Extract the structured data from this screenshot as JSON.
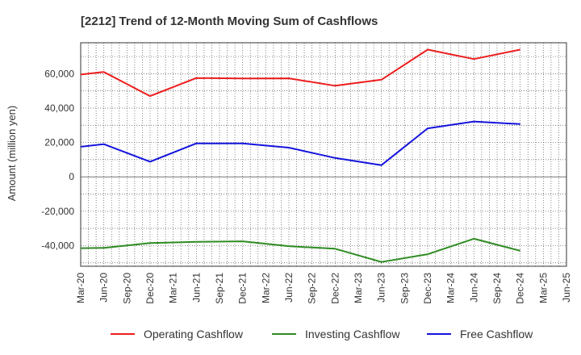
{
  "chart_data": {
    "type": "line",
    "title": "[2212]  Trend of 12-Month Moving Sum of Cashflows",
    "xlabel": "",
    "ylabel": "Amount (million yen)",
    "ylim": [
      -52000,
      78000
    ],
    "yticks": [
      60000,
      40000,
      20000,
      0,
      -20000,
      -40000
    ],
    "ytick_labels": [
      "60,000",
      "40,000",
      "20,000",
      "0",
      "-20,000",
      "-40,000"
    ],
    "categories": [
      "Mar-20",
      "Jun-20",
      "Sep-20",
      "Dec-20",
      "Mar-21",
      "Jun-21",
      "Sep-21",
      "Dec-21",
      "Mar-22",
      "Jun-22",
      "Sep-22",
      "Dec-22",
      "Mar-23",
      "Jun-23",
      "Sep-23",
      "Dec-23",
      "Mar-24",
      "Jun-24",
      "Sep-24",
      "Dec-24",
      "Mar-25",
      "Jun-25"
    ],
    "grid": true,
    "legend_position": "bottom",
    "series": [
      {
        "name": "Operating Cashflow",
        "color": "#ee1c1c",
        "values": [
          59500,
          61000,
          null,
          47000,
          null,
          57500,
          null,
          57200,
          null,
          57300,
          null,
          53000,
          null,
          56500,
          null,
          74000,
          null,
          68500,
          null,
          74000,
          null,
          null
        ]
      },
      {
        "name": "Investing Cashflow",
        "color": "#2e8b22",
        "values": [
          -41500,
          -41300,
          null,
          -38500,
          null,
          -37800,
          null,
          -37500,
          null,
          -40300,
          null,
          -41800,
          null,
          -49500,
          null,
          -45000,
          null,
          -36000,
          null,
          -43000,
          null,
          null
        ]
      },
      {
        "name": "Free Cashflow",
        "color": "#1414dd",
        "values": [
          17500,
          19000,
          null,
          8800,
          null,
          19500,
          null,
          19500,
          null,
          17000,
          null,
          11000,
          null,
          6800,
          null,
          28200,
          null,
          32200,
          null,
          30700,
          null,
          null
        ]
      }
    ]
  }
}
